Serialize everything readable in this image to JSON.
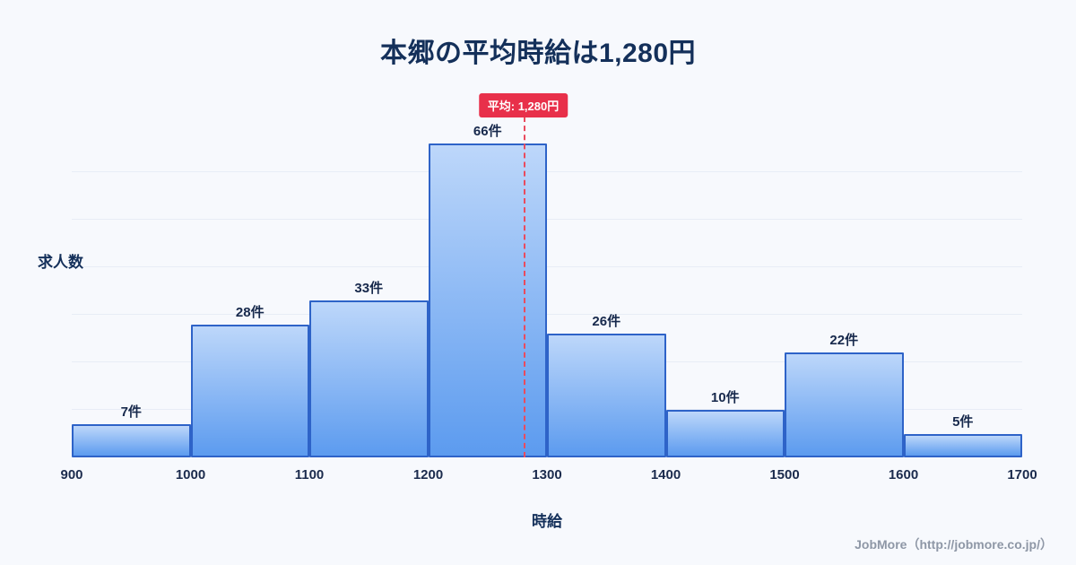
{
  "title": "本郷の平均時給は1,280円",
  "footer": "JobMore（http://jobmore.co.jp/）",
  "chart_data": {
    "type": "bar",
    "title": "本郷の平均時給は1,280円",
    "xlabel": "時給",
    "ylabel": "求人数",
    "bin_edges": [
      900,
      1000,
      1100,
      1200,
      1300,
      1400,
      1500,
      1600,
      1700
    ],
    "values": [
      7,
      28,
      33,
      66,
      26,
      10,
      22,
      5
    ],
    "bar_labels": [
      "7件",
      "28件",
      "33件",
      "66件",
      "26件",
      "10件",
      "22件",
      "5件"
    ],
    "x_ticks": [
      "900",
      "1000",
      "1100",
      "1200",
      "1300",
      "1400",
      "1500",
      "1600",
      "1700"
    ],
    "ylim": [
      0,
      70
    ],
    "grid": "horizontal-faint",
    "average_line": {
      "x": 1280,
      "label": "平均: 1,280円",
      "color": "#e8304a",
      "style": "dashed"
    },
    "colors": {
      "bar_fill_top": "#bdd7fa",
      "bar_fill_bottom": "#5c9bef",
      "bar_border": "#2e63c8",
      "title_text": "#14305a",
      "background": "#f7f9fd",
      "average_red": "#e8304a"
    }
  }
}
